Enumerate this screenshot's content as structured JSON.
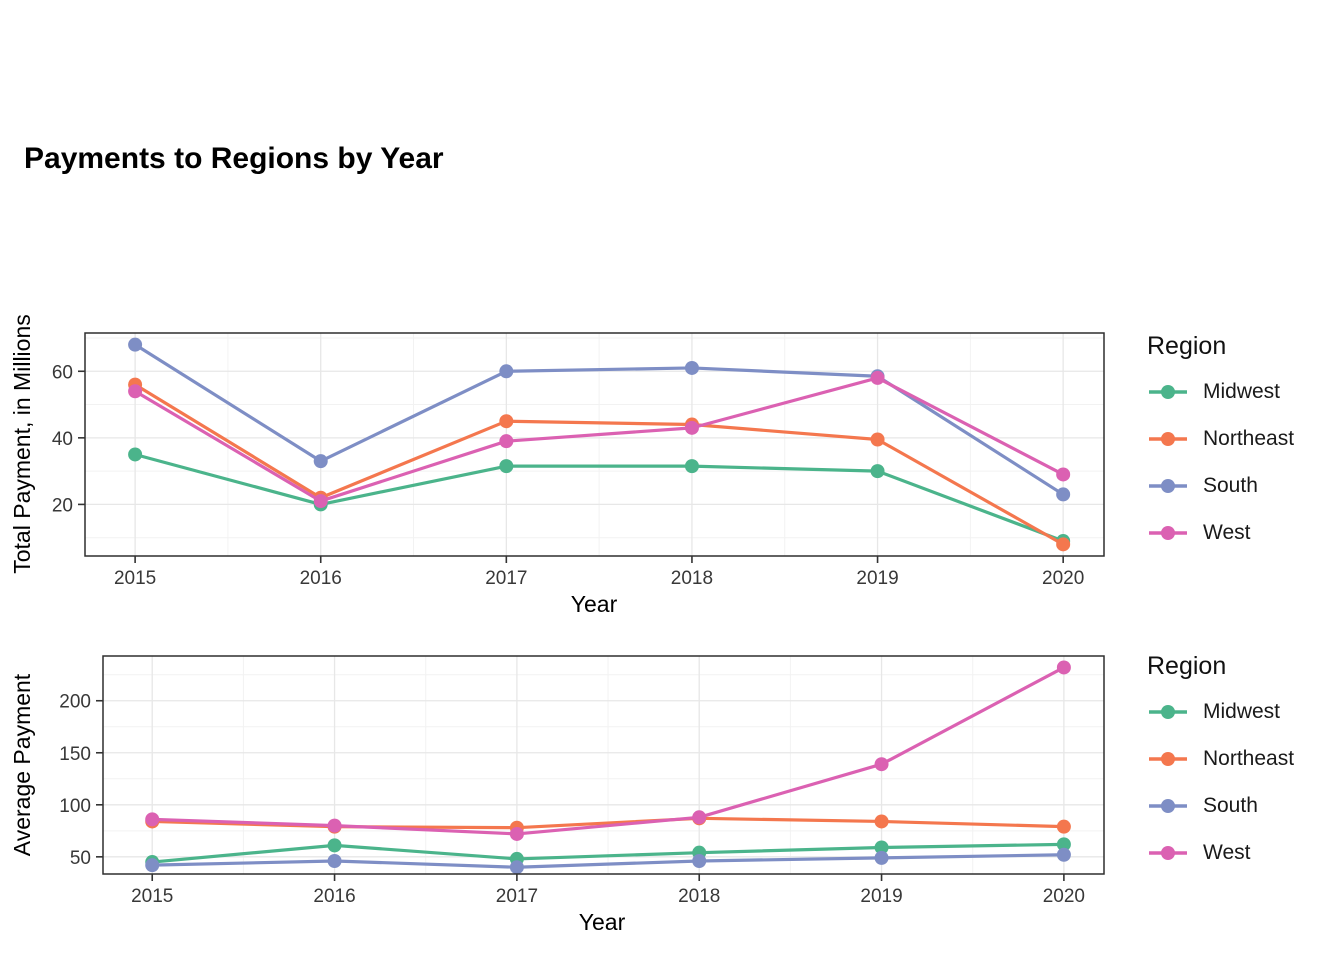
{
  "page": {
    "title": "Payments to Regions by Year"
  },
  "palette": {
    "Midwest": "#4BB48B",
    "Northeast": "#F4774E",
    "South": "#7E8EC5",
    "West": "#DB61B2"
  },
  "legend": {
    "title": "Region",
    "items": [
      "Midwest",
      "Northeast",
      "South",
      "West"
    ]
  },
  "chart_data": [
    {
      "type": "line",
      "title": "Payments to Regions by Year",
      "xlabel": "Year",
      "ylabel": "Total Payment, in Millions",
      "x": [
        2015,
        2016,
        2017,
        2018,
        2019,
        2020
      ],
      "series": [
        {
          "name": "Midwest",
          "values": [
            35,
            20,
            31.5,
            31.5,
            30,
            9
          ]
        },
        {
          "name": "Northeast",
          "values": [
            56,
            22,
            45,
            44,
            39.5,
            8
          ]
        },
        {
          "name": "South",
          "values": [
            68,
            33,
            60,
            61,
            58.5,
            23
          ]
        },
        {
          "name": "West",
          "values": [
            54,
            21,
            39,
            43,
            58,
            29
          ]
        }
      ],
      "yticks": [
        20,
        40,
        60
      ],
      "yticks_minor": [
        10,
        30,
        50,
        70
      ],
      "xticks_minor": [
        2015.5,
        2016.5,
        2017.5,
        2018.5,
        2019.5
      ],
      "ylim": [
        4.5,
        71.5
      ],
      "xlim": [
        2014.73,
        2020.22
      ],
      "grid": "on",
      "legend_title": "Region",
      "legend_position": "right"
    },
    {
      "type": "line",
      "title": "",
      "xlabel": "Year",
      "ylabel": "Average Payment",
      "x": [
        2015,
        2016,
        2017,
        2018,
        2019,
        2020
      ],
      "series": [
        {
          "name": "Midwest",
          "values": [
            45,
            61,
            48,
            54,
            59,
            62
          ]
        },
        {
          "name": "Northeast",
          "values": [
            84,
            79,
            78,
            87,
            84,
            79
          ]
        },
        {
          "name": "South",
          "values": [
            42,
            46,
            40,
            46,
            49,
            52
          ]
        },
        {
          "name": "West",
          "values": [
            86,
            80,
            72,
            88,
            139,
            232
          ]
        }
      ],
      "yticks": [
        50,
        100,
        150,
        200
      ],
      "yticks_minor": [
        75,
        125,
        175,
        225
      ],
      "xticks_minor": [
        2015.5,
        2016.5,
        2017.5,
        2018.5,
        2019.5
      ],
      "ylim": [
        33.5,
        243
      ],
      "xlim": [
        2014.73,
        2020.22
      ],
      "grid": "on",
      "legend_title": "Region",
      "legend_position": "right"
    }
  ]
}
